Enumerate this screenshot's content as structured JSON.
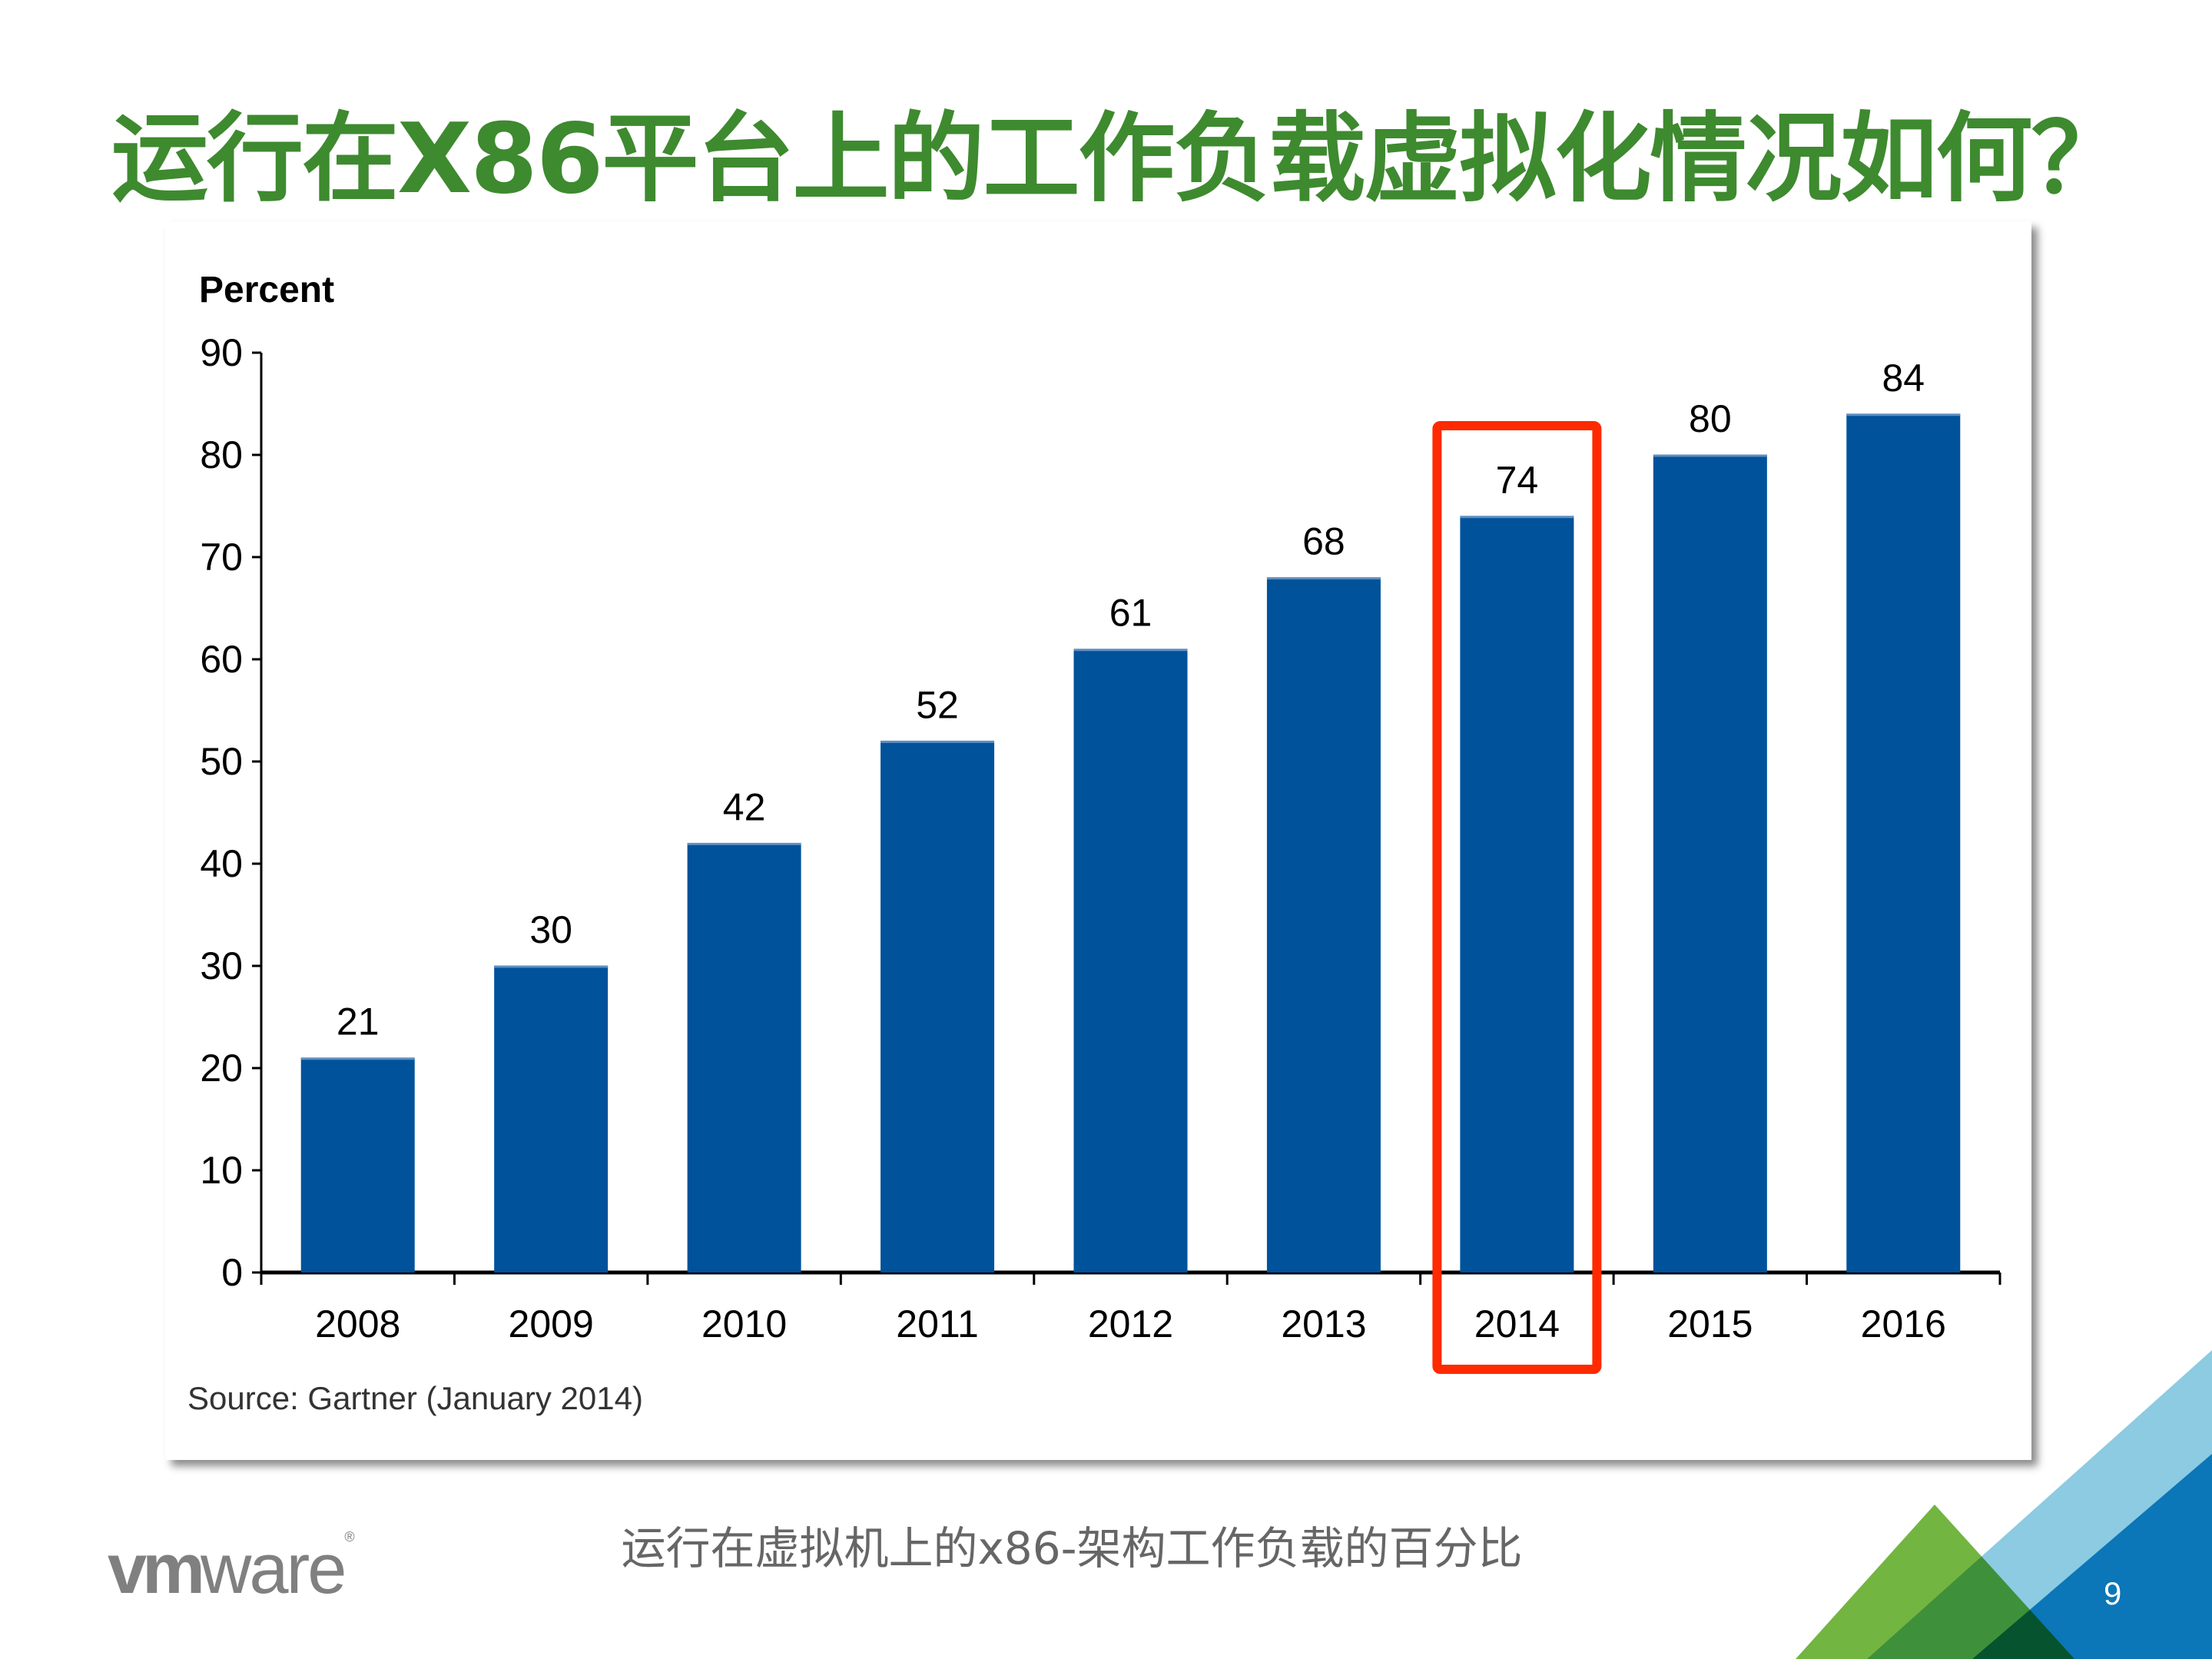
{
  "slide": {
    "title": "运行在X86平台上的工作负载虚拟化情况如何？",
    "subtitle": "运行在虚拟机上的x86-架构工作负载的百分比",
    "logo_text": "vmware",
    "page_number": "9",
    "colors": {
      "title": "#3e8a2f",
      "bar": "#00529b",
      "highlight_box": "#ff2a00",
      "deco_green": "#72b541",
      "deco_light_blue": "#8ccbe1",
      "deco_dark_blue": "#0b76b8"
    }
  },
  "chart_data": {
    "type": "bar",
    "ylabel": "Percent",
    "categories": [
      "2008",
      "2009",
      "2010",
      "2011",
      "2012",
      "2013",
      "2014",
      "2015",
      "2016"
    ],
    "values": [
      21,
      30,
      42,
      52,
      61,
      68,
      74,
      80,
      84
    ],
    "ylim": [
      0,
      90
    ],
    "yticks": [
      0,
      10,
      20,
      30,
      40,
      50,
      60,
      70,
      80,
      90
    ],
    "grid": false,
    "data_labels": true,
    "highlighted_category": "2014",
    "source": "Source: Gartner (January 2014)"
  }
}
